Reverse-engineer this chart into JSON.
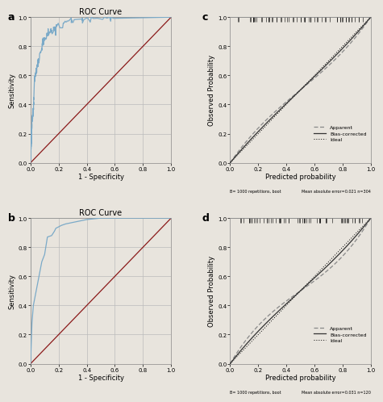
{
  "title_a": "ROC Curve",
  "title_b": "ROC Curve",
  "xlabel_roc": "1 - Specificity",
  "ylabel_roc": "Sensitivity",
  "xlabel_cal": "Predicted probability",
  "ylabel_cal": "Observed Probability",
  "label_a": "a",
  "label_b": "b",
  "label_c": "c",
  "label_d": "d",
  "roc_color": "#7baac8",
  "diag_color": "#8B1A1A",
  "tick_labels": [
    "0.0",
    "0.2",
    "0.4",
    "0.6",
    "0.8",
    "1.0"
  ],
  "tick_vals": [
    0.0,
    0.2,
    0.4,
    0.6,
    0.8,
    1.0
  ],
  "footer_c_left": "B= 1000 repetitions, boot",
  "footer_c_right": "Mean absolute error=0.021 n=304",
  "footer_d_left": "B= 1000 repetitions, boot",
  "footer_d_right": "Mean absolute error=0.031 n=120",
  "legend_apparent": "Apparent",
  "legend_bias": "Bias-corrected",
  "legend_ideal": "Ideal",
  "bg_color": "#e8e4dd",
  "plot_bg": "#e8e4dd",
  "grid_color": "#cccccc"
}
